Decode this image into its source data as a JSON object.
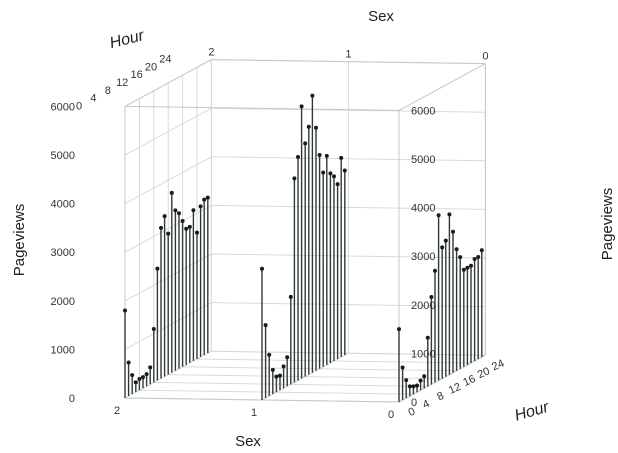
{
  "chart_data": {
    "type": "stem-3d",
    "title": "",
    "x_axis": {
      "label": "Sex",
      "ticks": [
        "0",
        "1",
        "2"
      ]
    },
    "y_axis": {
      "label": "Hour",
      "ticks": [
        "0",
        "4",
        "8",
        "12",
        "16",
        "20",
        "24"
      ],
      "range": [
        0,
        24
      ]
    },
    "z_axis": {
      "label": "Pageviews",
      "ticks": [
        "0",
        "1000",
        "2000",
        "3000",
        "4000",
        "5000",
        "6000"
      ],
      "range": [
        0,
        6000
      ]
    },
    "grid": true,
    "series": [
      {
        "sex": "2",
        "hours": [
          0,
          1,
          2,
          3,
          4,
          5,
          6,
          7,
          8,
          9,
          10,
          11,
          12,
          13,
          14,
          15,
          16,
          17,
          18,
          19,
          20,
          21,
          22,
          23
        ],
        "values": [
          1800,
          690,
          390,
          200,
          230,
          230,
          250,
          350,
          1100,
          2300,
          3100,
          3300,
          2900,
          3700,
          3300,
          3200,
          3000,
          2800,
          2800,
          3100,
          2600,
          3100,
          3200,
          3200
        ]
      },
      {
        "sex": "1",
        "hours": [
          0,
          1,
          2,
          3,
          4,
          5,
          6,
          7,
          8,
          9,
          10,
          11,
          12,
          13,
          14,
          15,
          16,
          17,
          18,
          19,
          20,
          21,
          22,
          23
        ],
        "values": [
          2700,
          1500,
          850,
          500,
          320,
          300,
          450,
          600,
          1800,
          4200,
          4600,
          5600,
          4800,
          5100,
          5700,
          5000,
          4400,
          4000,
          4300,
          3900,
          3800,
          3600,
          4100,
          3800
        ]
      },
      {
        "sex": "0",
        "hours": [
          0,
          1,
          2,
          3,
          4,
          5,
          6,
          7,
          8,
          9,
          10,
          11,
          12,
          13,
          14,
          15,
          16,
          17,
          18,
          19,
          20,
          21,
          22,
          23
        ],
        "values": [
          1500,
          670,
          370,
          200,
          160,
          140,
          200,
          250,
          1000,
          1800,
          2300,
          3400,
          2700,
          2800,
          3300,
          2900,
          2500,
          2300,
          2000,
          2000,
          2000,
          2100,
          2100,
          2200
        ]
      }
    ]
  }
}
